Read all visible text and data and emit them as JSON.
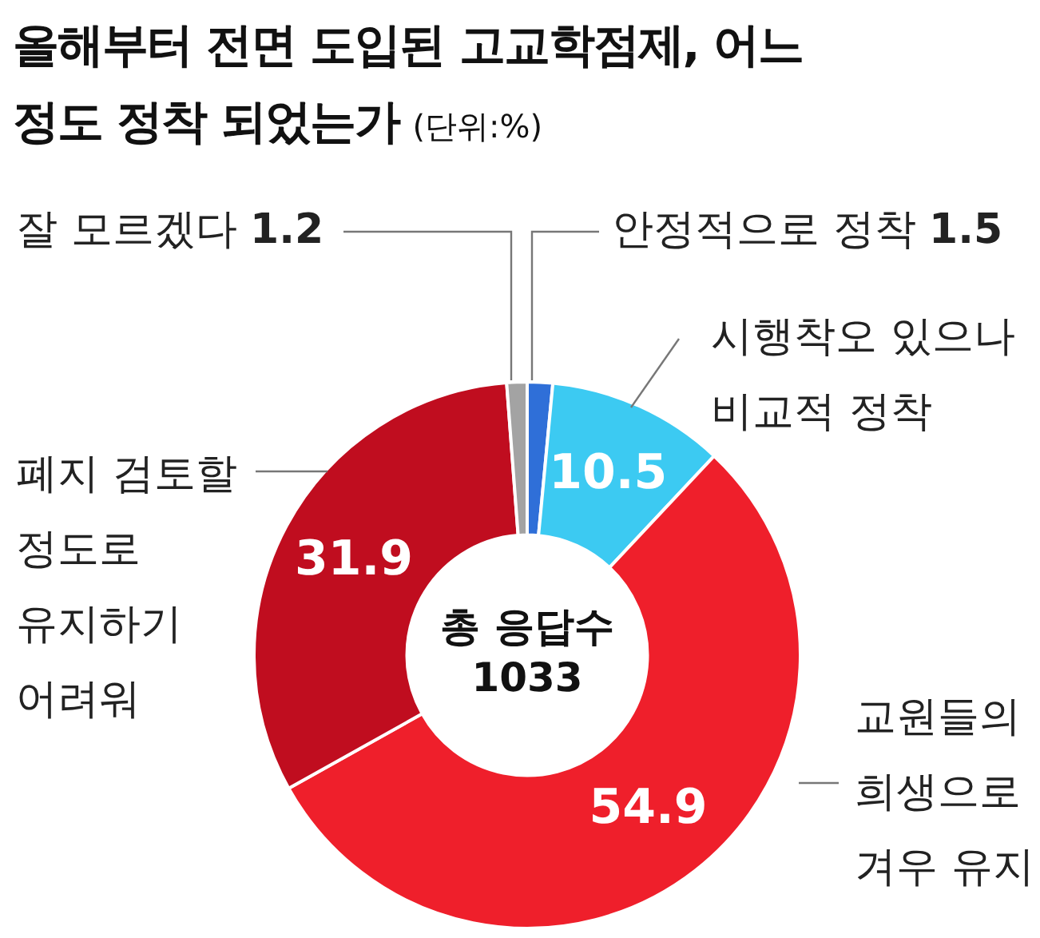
{
  "chart_data": {
    "type": "donut",
    "title": "올해부터 전면 도입된 고교학점제, 어느 정도 정착 되었는가",
    "subtitle": "(단위:%)",
    "categories": [
      "안정적으로 정착",
      "시행착오 있으나 비교적 정착",
      "교원들의 희생으로 겨우 유지",
      "폐지 검토할 정도로 유지하기 어려워",
      "잘 모르겠다"
    ],
    "values": [
      1.5,
      10.5,
      54.9,
      31.9,
      1.2
    ],
    "colors": [
      "#2f6fd8",
      "#3ccaf2",
      "#ef1f2b",
      "#c00d1f",
      "#a3a3a3"
    ],
    "data_labels": true,
    "legend": false,
    "annotations": [
      "총 응답수 1033"
    ]
  }
}
